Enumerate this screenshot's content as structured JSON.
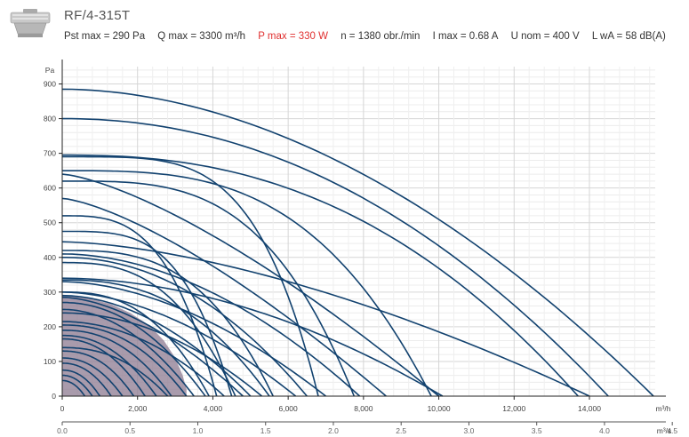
{
  "header": {
    "title": "RF/4-315T",
    "specs": {
      "pst": "Pst max = 290 Pa",
      "q": "Q max = 3300 m³/h",
      "p": "P max = 330 W",
      "n": "n = 1380 obr./min",
      "i": "I max = 0.68 A",
      "u": "U nom = 400 V",
      "lwa": "L wA = 58 dB(A)"
    }
  },
  "colors": {
    "curve": "#12426f",
    "region_fill": "#8c7990",
    "highlight": "#e03030"
  },
  "chart_data": {
    "type": "line",
    "ylabel": "Pa",
    "xlabel": "m³/h",
    "xlabel2": "m³/s",
    "xlim": [
      0,
      15700
    ],
    "ylim": [
      0,
      950
    ],
    "x_ticks": [
      "0",
      "2,000",
      "4,000",
      "6,000",
      "8,000",
      "10,000",
      "12,000",
      "14,000"
    ],
    "x_tick_values": [
      0,
      2000,
      4000,
      6000,
      8000,
      10000,
      12000,
      14000
    ],
    "x2_ticks": [
      "0.0",
      "0.5",
      "1.0",
      "1.5",
      "2.0",
      "2.5",
      "3.0",
      "3.5",
      "4.0",
      "4.5"
    ],
    "x2_tick_values": [
      0,
      0.5,
      1.0,
      1.5,
      2.0,
      2.5,
      3.0,
      3.5,
      4.0,
      4.5
    ],
    "y_ticks": [
      "0",
      "100",
      "200",
      "300",
      "400",
      "500",
      "600",
      "700",
      "800",
      "900"
    ],
    "y_tick_values": [
      0,
      100,
      200,
      300,
      400,
      500,
      600,
      700,
      800,
      900
    ],
    "grid": true,
    "highlight_region": {
      "x": [
        0,
        300,
        800,
        1300,
        1800,
        2300,
        2700,
        3000,
        3200,
        3300,
        3300
      ],
      "y": [
        290,
        288,
        280,
        265,
        240,
        205,
        160,
        110,
        60,
        20,
        0
      ]
    },
    "series": [
      {
        "y0": 885,
        "xmax": 15700,
        "k": 0.9
      },
      {
        "y0": 800,
        "xmax": 14500,
        "k": 1.1
      },
      {
        "y0": 695,
        "xmax": 13700,
        "k": 1.4
      },
      {
        "y0": 640,
        "xmax": 10000,
        "k": 0.4
      },
      {
        "y0": 570,
        "xmax": 8600,
        "k": 0.4
      },
      {
        "y0": 650,
        "xmax": 9800,
        "k": 2.2
      },
      {
        "y0": 620,
        "xmax": 7750,
        "k": 2.4
      },
      {
        "y0": 690,
        "xmax": 6800,
        "k": 3.3
      },
      {
        "y0": 445,
        "xmax": 14000,
        "k": 0.6
      },
      {
        "y0": 410,
        "xmax": 7900,
        "k": 0.9
      },
      {
        "y0": 400,
        "xmax": 6500,
        "k": 1.1
      },
      {
        "y0": 340,
        "xmax": 10100,
        "k": 0.9
      },
      {
        "y0": 330,
        "xmax": 7000,
        "k": 0.8
      },
      {
        "y0": 300,
        "xmax": 6200,
        "k": 0.8
      },
      {
        "y0": 290,
        "xmax": 5000,
        "k": 0.9
      },
      {
        "y0": 285,
        "xmax": 4800,
        "k": 0.7
      },
      {
        "y0": 520,
        "xmax": 4100,
        "k": 2.2
      },
      {
        "y0": 420,
        "xmax": 5600,
        "k": 2.0
      },
      {
        "y0": 335,
        "xmax": 5500,
        "k": 1.5
      },
      {
        "y0": 475,
        "xmax": 4500,
        "k": 2.6
      },
      {
        "y0": 385,
        "xmax": 4600,
        "k": 1.8
      },
      {
        "y0": 300,
        "xmax": 3900,
        "k": 1.6
      },
      {
        "y0": 270,
        "xmax": 3800,
        "k": 1.1
      },
      {
        "y0": 250,
        "xmax": 3500,
        "k": 1.0
      },
      {
        "y0": 240,
        "xmax": 5300,
        "k": 1.0
      },
      {
        "y0": 215,
        "xmax": 4300,
        "k": 1.0
      },
      {
        "y0": 205,
        "xmax": 3300,
        "k": 1.3
      },
      {
        "y0": 190,
        "xmax": 2900,
        "k": 1.3
      },
      {
        "y0": 175,
        "xmax": 2500,
        "k": 1.2
      },
      {
        "y0": 165,
        "xmax": 2200,
        "k": 1.2
      },
      {
        "y0": 140,
        "xmax": 2800,
        "k": 1.3
      },
      {
        "y0": 130,
        "xmax": 1900,
        "k": 1.3
      },
      {
        "y0": 110,
        "xmax": 1600,
        "k": 1.2
      },
      {
        "y0": 95,
        "xmax": 1300,
        "k": 1.2
      },
      {
        "y0": 75,
        "xmax": 1000,
        "k": 1.2
      },
      {
        "y0": 60,
        "xmax": 800,
        "k": 1.1
      },
      {
        "y0": 45,
        "xmax": 600,
        "k": 1.1
      }
    ]
  }
}
